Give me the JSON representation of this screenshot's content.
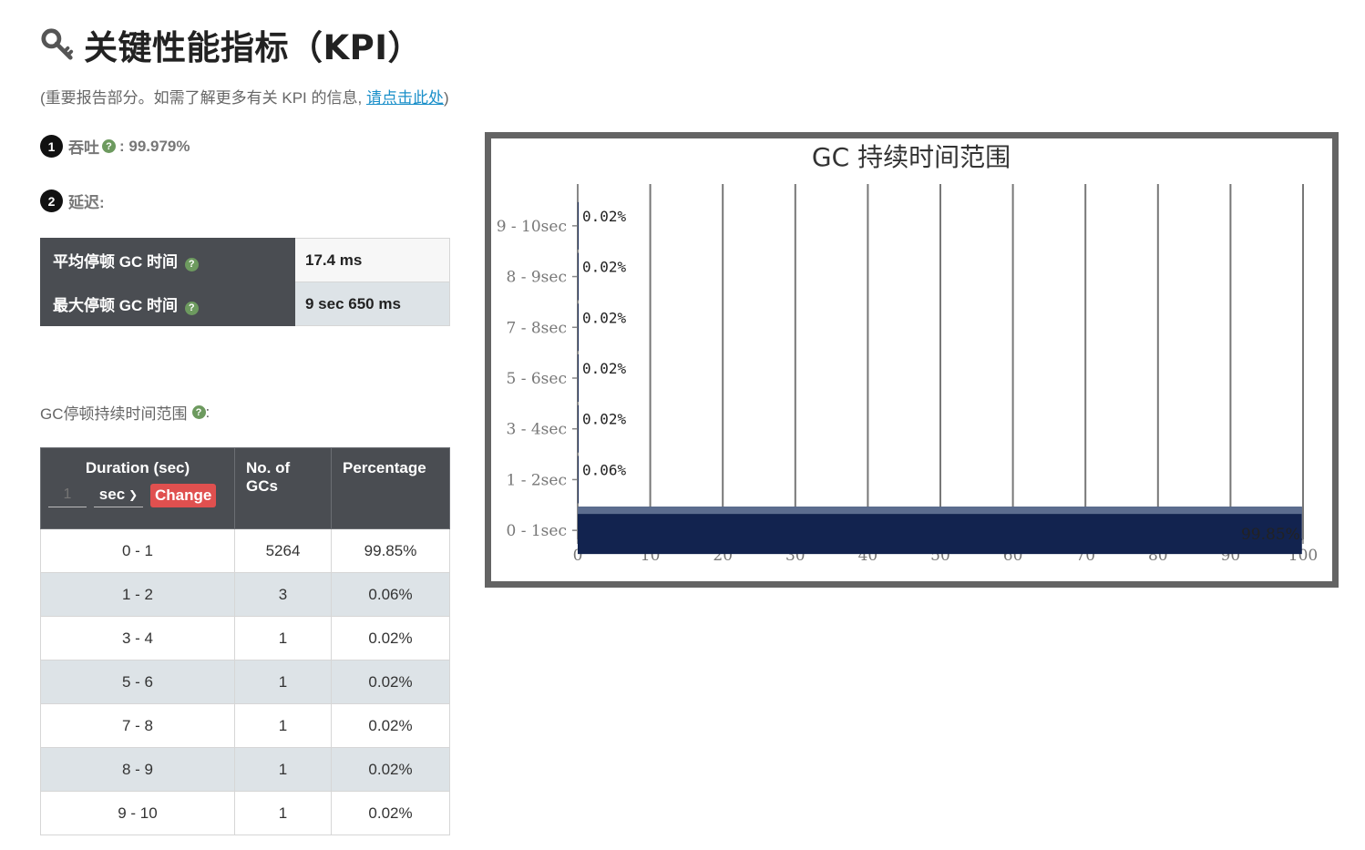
{
  "header": {
    "title": "关键性能指标（KPI）",
    "subtitle_prefix": "(重要报告部分。如需了解更多有关 KPI 的信息, ",
    "subtitle_link": "请点击此处",
    "subtitle_suffix": ")"
  },
  "kpi": {
    "throughput": {
      "num": "1",
      "label": "吞吐",
      "help": "?",
      "value": ": 99.979%"
    },
    "latency": {
      "num": "2",
      "label": "延迟:"
    }
  },
  "pause_table": [
    {
      "label": "平均停顿 GC 时间",
      "value": "17.4 ms"
    },
    {
      "label": "最大停顿 GC 时间",
      "value": "9 sec 650 ms"
    }
  ],
  "range_section": {
    "label": "GC停顿持续时间范围",
    "suffix": ":"
  },
  "gc_table": {
    "headers": {
      "duration": "Duration (sec)",
      "count": "No. of GCs",
      "percent": "Percentage"
    },
    "controls": {
      "input_placeholder": "1",
      "unit": "sec",
      "change_label": "Change"
    },
    "rows": [
      {
        "duration": "0 - 1",
        "count": "5264",
        "percent": "99.85%"
      },
      {
        "duration": "1 - 2",
        "count": "3",
        "percent": "0.06%"
      },
      {
        "duration": "3 - 4",
        "count": "1",
        "percent": "0.02%"
      },
      {
        "duration": "5 - 6",
        "count": "1",
        "percent": "0.02%"
      },
      {
        "duration": "7 - 8",
        "count": "1",
        "percent": "0.02%"
      },
      {
        "duration": "8 - 9",
        "count": "1",
        "percent": "0.02%"
      },
      {
        "duration": "9 - 10",
        "count": "1",
        "percent": "0.02%"
      }
    ]
  },
  "chart_data": {
    "type": "bar",
    "orientation": "horizontal",
    "title": "GC 持续时间范围",
    "categories": [
      "9 - 10sec",
      "8 - 9sec",
      "7 - 8sec",
      "5 - 6sec",
      "3 - 4sec",
      "1 - 2sec",
      "0 - 1sec"
    ],
    "values": [
      0.02,
      0.02,
      0.02,
      0.02,
      0.02,
      0.06,
      99.85
    ],
    "data_labels": [
      "0.02%",
      "0.02%",
      "0.02%",
      "0.02%",
      "0.02%",
      "0.06%",
      "99.85%"
    ],
    "xlim": [
      0,
      100
    ],
    "xticks": [
      0,
      10,
      20,
      30,
      40,
      50,
      60,
      70,
      80,
      90,
      100
    ],
    "grid": "vertical",
    "bar_color": "#12234f"
  }
}
